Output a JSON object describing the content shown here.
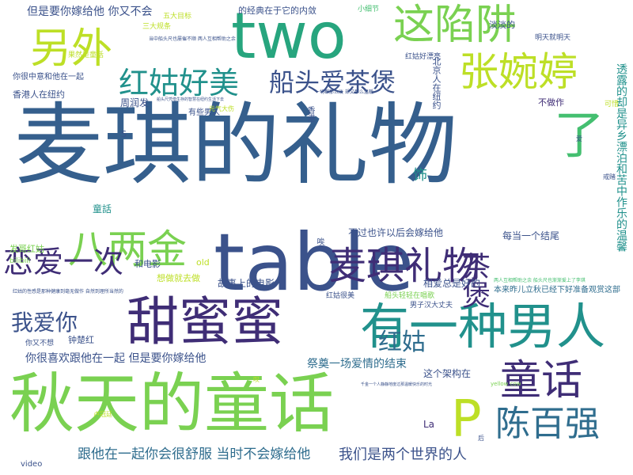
{
  "palette": {
    "dark_purple": "#3f2d76",
    "indigo": "#3b528b",
    "blue": "#355f8d",
    "steel": "#2f6d8e",
    "teal": "#21918c",
    "green_teal": "#27a57e",
    "green": "#44bf70",
    "lime": "#7ad151",
    "yellow": "#bddf26"
  },
  "words": [
    {
      "text": "麦琪的礼物",
      "weight": 100
    },
    {
      "text": "table",
      "weight": 62
    },
    {
      "text": "two",
      "weight": 58
    },
    {
      "text": "秋天的童话",
      "weight": 60
    },
    {
      "text": "甜蜜蜜",
      "weight": 52
    },
    {
      "text": "有一种男人",
      "weight": 50
    },
    {
      "text": "这陷阱",
      "weight": 42
    },
    {
      "text": "另外",
      "weight": 40
    },
    {
      "text": "张婉婷",
      "weight": 38
    },
    {
      "text": "麦琪礼物",
      "weight": 40
    },
    {
      "text": "八两金",
      "weight": 38
    },
    {
      "text": "童话",
      "weight": 38
    },
    {
      "text": "陈百强",
      "weight": 34
    },
    {
      "text": "P",
      "weight": 40
    },
    {
      "text": "了",
      "weight": 40
    },
    {
      "text": "红姑好美",
      "weight": 30
    },
    {
      "text": "船头爱茶煲",
      "weight": 28
    },
    {
      "text": "恋爱一次",
      "weight": 30
    },
    {
      "text": "茶煲",
      "weight": 30
    },
    {
      "text": "红姑",
      "weight": 24
    },
    {
      "text": "我爱你",
      "weight": 22
    },
    {
      "text": "跟他在一起你会很舒服 当时不会嫁给他",
      "weight": 14
    },
    {
      "text": "我们是两个世界的人",
      "weight": 14
    },
    {
      "text": "但是要你嫁给他 你又不会",
      "weight": 12
    },
    {
      "text": "你很喜欢跟他在一起 但是要你嫁给他",
      "weight": 12
    },
    {
      "text": "祭奠一场爱情的结束",
      "weight": 12
    },
    {
      "text": "故事上的电影",
      "weight": 11
    },
    {
      "text": "不过也许以后会嫁给他",
      "weight": 11
    },
    {
      "text": "每当一个结尾",
      "weight": 11
    },
    {
      "text": "相爱总是好的",
      "weight": 11
    },
    {
      "text": "这个架构在",
      "weight": 11
    },
    {
      "text": "童話",
      "weight": 11
    },
    {
      "text": "饰",
      "weight": 14
    },
    {
      "text": "周润发",
      "weight": 11
    },
    {
      "text": "香港人在纽约",
      "weight": 10
    },
    {
      "text": "你很中意和他在一起",
      "weight": 9
    },
    {
      "text": "有些男人",
      "weight": 9
    },
    {
      "text": "北京人在纽约",
      "weight": 10
    },
    {
      "text": "的经典在于它的内敛",
      "weight": 10
    },
    {
      "text": "淡淡的",
      "weight": 10
    },
    {
      "text": "不做作",
      "weight": 10
    },
    {
      "text": "红姑好漂亮",
      "weight": 8
    },
    {
      "text": "明天就明天",
      "weight": 8
    },
    {
      "text": "透露的却是异乡漂泊和苦中作乐的温馨",
      "weight": 12
    },
    {
      "text": "发哥红姑",
      "weight": 10
    },
    {
      "text": "钟楚红",
      "weight": 10
    },
    {
      "text": "想做就去做",
      "weight": 10
    },
    {
      "text": "和电影",
      "weight": 10
    },
    {
      "text": "old",
      "weight": 10
    },
    {
      "text": "La",
      "weight": 11
    },
    {
      "text": "video",
      "weight": 9
    },
    {
      "text": "五大目标",
      "weight": 8
    },
    {
      "text": "三大规条",
      "weight": 8
    },
    {
      "text": "果然是童话",
      "weight": 8
    },
    {
      "text": "小细节",
      "weight": 8
    },
    {
      "text": "香港",
      "weight": 9
    },
    {
      "text": "S",
      "weight": 10
    },
    {
      "text": "红姑很美",
      "weight": 8
    },
    {
      "text": "船头轻轻在唱歌",
      "weight": 8
    },
    {
      "text": "男子汉大丈夫",
      "weight": 8
    },
    {
      "text": "你又不想",
      "weight": 8
    },
    {
      "text": "本来昨儿立秋已经下好准备观赏这部",
      "weight": 8
    },
    {
      "text": "两人互相帮助之余 船头尺也渐渐爱上了李琪",
      "weight": 6
    },
    {
      "text": "bilibili",
      "weight": 8
    },
    {
      "text": "卢冠廷",
      "weight": 7
    },
    {
      "text": "后",
      "weight": 7
    },
    {
      "text": "叹",
      "weight": 7
    },
    {
      "text": "唉",
      "weight": 9
    },
    {
      "text": "元气大伤",
      "weight": 7
    },
    {
      "text": "一切都那么淡 却又那么温暖",
      "weight": 6
    },
    {
      "text": "可惜",
      "weight": 7
    },
    {
      "text": "爱",
      "weight": 7
    },
    {
      "text": "戒赌",
      "weight": 7
    },
    {
      "text": "yellow cow",
      "weight": 6
    },
    {
      "text": "当中船头尺也屡催不顺 两人互相帮助之余",
      "weight": 5
    },
    {
      "text": "船头尺凭借生存的智慧在纽约生活下去",
      "weight": 5
    },
    {
      "text": "红姑的性感是那种健康到毫无做作 自然到理所当然的",
      "weight": 5
    },
    {
      "text": "千金一个人静静地度过那温暖快乐的时光",
      "weight": 5
    }
  ]
}
